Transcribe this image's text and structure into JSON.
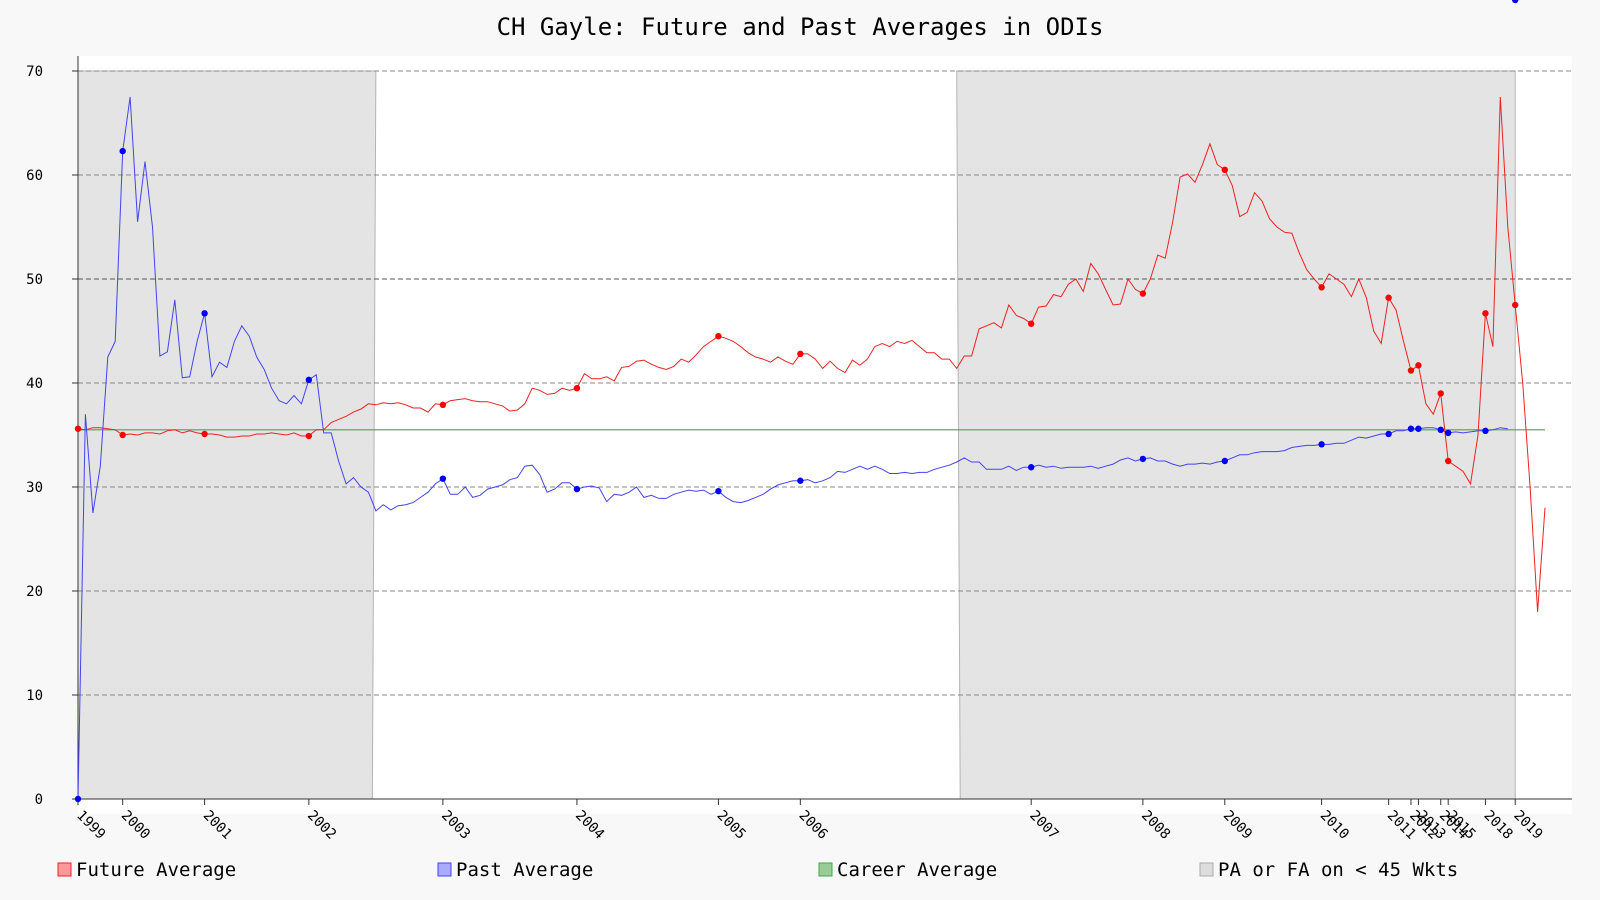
{
  "chart_data": {
    "type": "line",
    "title": "CH Gayle: Future and Past Averages in ODIs",
    "xlabel": "",
    "ylabel": "",
    "ylim": [
      0,
      70
    ],
    "y_ticks": [
      "0",
      "10",
      "20",
      "30",
      "40",
      "50",
      "60",
      "70"
    ],
    "grid": "horizontal-dashed",
    "year_ticks": [
      "1999",
      "2000",
      "2001",
      "2002",
      "2003",
      "2004",
      "2005",
      "2006",
      "2007",
      "2008",
      "2009",
      "2010",
      "2011",
      "2012",
      "2013",
      "2014",
      "2015",
      "2018",
      "2019"
    ],
    "year_tick_index": [
      0,
      6,
      17,
      31,
      49,
      67,
      86,
      97,
      128,
      143,
      154,
      167,
      176,
      179,
      180,
      183,
      184,
      189,
      193
    ],
    "shaded_regions": [
      {
        "label": "PA or FA on < 45 Wkts",
        "start_index": 0,
        "end_index": 40
      },
      {
        "label": "PA or FA on < 45 Wkts",
        "start_index": 118,
        "end_index": 193
      }
    ],
    "career_average": 35.5,
    "series": [
      {
        "name": "Future Average",
        "color": "#ee2222",
        "values": [
          35.6,
          35.5,
          35.7,
          35.7,
          35.6,
          35.5,
          35.0,
          35.1,
          35.0,
          35.2,
          35.2,
          35.1,
          35.4,
          35.5,
          35.2,
          35.4,
          35.2,
          35.1,
          35.1,
          35.0,
          34.8,
          34.8,
          34.9,
          34.9,
          35.1,
          35.1,
          35.2,
          35.1,
          35.0,
          35.2,
          34.9,
          34.9,
          35.5,
          35.5,
          36.2,
          36.5,
          36.8,
          37.2,
          37.5,
          38.0,
          37.9,
          38.1,
          38.0,
          38.1,
          37.9,
          37.6,
          37.6,
          37.2,
          38.0,
          37.9,
          38.3,
          38.4,
          38.5,
          38.3,
          38.2,
          38.2,
          38.0,
          37.8,
          37.3,
          37.4,
          38.0,
          39.5,
          39.3,
          38.9,
          39.0,
          39.5,
          39.3,
          39.5,
          40.9,
          40.4,
          40.4,
          40.6,
          40.2,
          41.5,
          41.6,
          42.1,
          42.2,
          41.8,
          41.5,
          41.3,
          41.6,
          42.3,
          42.0,
          42.7,
          43.5,
          44.0,
          44.5,
          44.3,
          44.0,
          43.5,
          42.9,
          42.5,
          42.3,
          42.0,
          42.5,
          42.1,
          41.8,
          42.8,
          42.8,
          42.3,
          41.4,
          42.1,
          41.4,
          41.0,
          42.2,
          41.7,
          42.3,
          43.5,
          43.8,
          43.5,
          44.0,
          43.8,
          44.1,
          43.5,
          42.9,
          42.9,
          42.3,
          42.3,
          41.4,
          42.6,
          42.6,
          45.2,
          45.5,
          45.8,
          45.3,
          47.5,
          46.5,
          46.2,
          45.7,
          47.3,
          47.4,
          48.5,
          48.3,
          49.5,
          50.0,
          48.8,
          51.5,
          50.5,
          49.0,
          47.5,
          47.6,
          50.0,
          49.0,
          48.6,
          50.0,
          52.3,
          52.0,
          55.5,
          59.8,
          60.1,
          59.3,
          61.0,
          63.0,
          61.0,
          60.5,
          59.0,
          56.0,
          56.4,
          58.3,
          57.5,
          55.8,
          55.0,
          54.5,
          54.4,
          52.5,
          50.9,
          50.0,
          49.2,
          50.5,
          50.0,
          49.5,
          48.3,
          50.0,
          48.2,
          45.0,
          43.8,
          48.2,
          47.0,
          44.0,
          41.2,
          41.7,
          38.0,
          37.0,
          39.0,
          32.5,
          32.0,
          31.5,
          30.3,
          35.0,
          46.7,
          43.5,
          67.5,
          55.0,
          47.5,
          40.0,
          30.0,
          18.0,
          28.0
        ],
        "marked_index": [
          0,
          6,
          17,
          31,
          49,
          67,
          86,
          97,
          128,
          143,
          154,
          167,
          176,
          179,
          180,
          183,
          184,
          189,
          193
        ]
      },
      {
        "name": "Past Average",
        "color": "#4444ee",
        "values": [
          0.0,
          37.0,
          27.5,
          32.0,
          42.5,
          44.0,
          62.3,
          67.5,
          55.5,
          61.3,
          55.0,
          42.6,
          43.0,
          48.0,
          40.5,
          40.6,
          44.0,
          46.7,
          40.6,
          42.0,
          41.5,
          44.0,
          45.5,
          44.5,
          42.5,
          41.3,
          39.5,
          38.3,
          38.0,
          38.8,
          38.0,
          40.3,
          40.8,
          35.2,
          35.2,
          32.5,
          30.3,
          30.9,
          30.0,
          29.5,
          27.7,
          28.3,
          27.8,
          28.2,
          28.3,
          28.5,
          29.0,
          29.5,
          30.3,
          30.8,
          29.3,
          29.3,
          30.0,
          29.0,
          29.2,
          29.8,
          30.0,
          30.2,
          30.7,
          30.9,
          32.0,
          32.1,
          31.2,
          29.5,
          29.8,
          30.4,
          30.4,
          29.8,
          30.0,
          30.1,
          29.9,
          28.6,
          29.3,
          29.2,
          29.5,
          30.0,
          29.0,
          29.2,
          28.9,
          28.9,
          29.3,
          29.5,
          29.7,
          29.6,
          29.7,
          29.3,
          29.6,
          29.0,
          28.6,
          28.5,
          28.7,
          29.0,
          29.3,
          29.8,
          30.2,
          30.4,
          30.6,
          30.6,
          30.7,
          30.4,
          30.6,
          30.9,
          31.5,
          31.4,
          31.7,
          32.0,
          31.7,
          32.0,
          31.7,
          31.3,
          31.3,
          31.4,
          31.3,
          31.4,
          31.4,
          31.7,
          31.9,
          32.1,
          32.4,
          32.8,
          32.4,
          32.4,
          31.7,
          31.7,
          31.7,
          32.0,
          31.6,
          31.9,
          31.9,
          32.1,
          31.9,
          32.0,
          31.8,
          31.9,
          31.9,
          31.9,
          32.0,
          31.8,
          32.0,
          32.2,
          32.6,
          32.8,
          32.5,
          32.7,
          32.8,
          32.5,
          32.5,
          32.2,
          32.0,
          32.2,
          32.2,
          32.3,
          32.2,
          32.4,
          32.5,
          32.8,
          33.1,
          33.1,
          33.3,
          33.4,
          33.4,
          33.4,
          33.5,
          33.8,
          33.9,
          34.0,
          34.0,
          34.1,
          34.1,
          34.2,
          34.2,
          34.5,
          34.8,
          34.7,
          34.9,
          35.1,
          35.1,
          35.4,
          35.4,
          35.6,
          35.6,
          35.7,
          35.7,
          35.5,
          35.2,
          35.3,
          35.2,
          35.3,
          35.4,
          35.4,
          35.5,
          35.7,
          35.6
        ],
        "marked_index": [
          0,
          6,
          17,
          31,
          49,
          67,
          86,
          97,
          128,
          143,
          154,
          167,
          176,
          179,
          180,
          183,
          184,
          189,
          193
        ]
      },
      {
        "name": "Career Average",
        "color": "#44aa44",
        "values": [
          35.5,
          35.5
        ]
      }
    ],
    "legend": {
      "placement": "bottom",
      "entries": [
        {
          "label": "Future Average",
          "color": "#ee2222"
        },
        {
          "label": "Past Average",
          "color": "#4444ee"
        },
        {
          "label": "Career Average",
          "color": "#44aa44"
        },
        {
          "label": "PA or FA on < 45 Wkts",
          "color": "#bbbbbb"
        }
      ]
    }
  }
}
